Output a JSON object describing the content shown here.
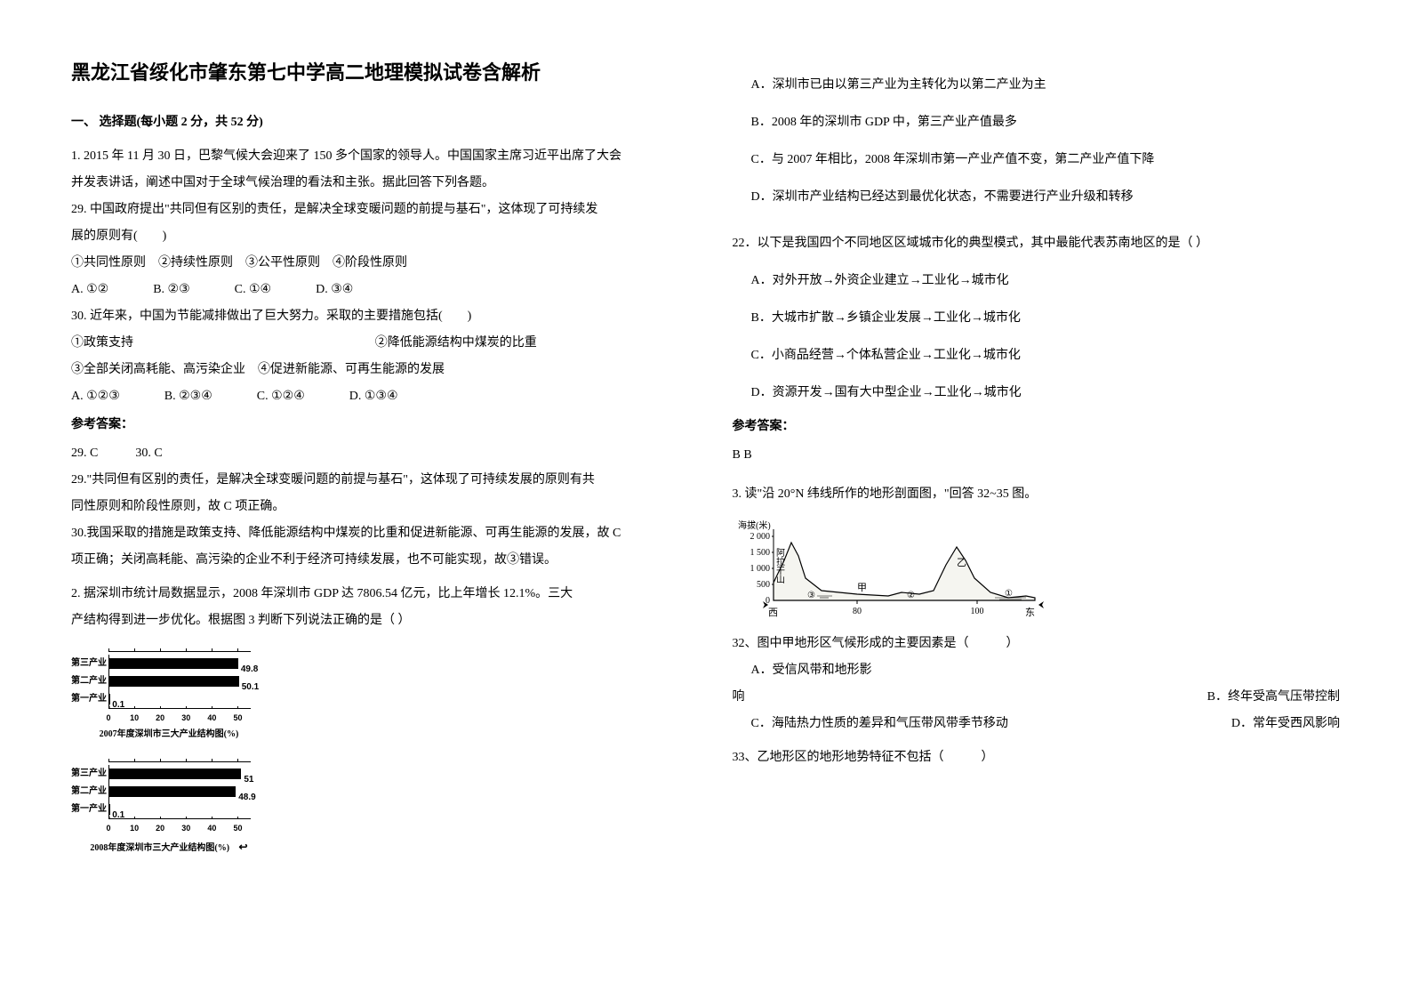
{
  "title": "黑龙江省绥化市肇东第七中学高二地理模拟试卷含解析",
  "section1_header": "一、 选择题(每小题 2 分，共 52 分)",
  "q1": {
    "intro1": "1. 2015 年 11 月 30 日，巴黎气候大会迎来了 150 多个国家的领导人。中国国家主席习近平出席了大会",
    "intro2": "并发表讲话，阐述中国对于全球气候治理的看法和主张。据此回答下列各题。",
    "q29a": "29. 中国政府提出\"共同但有区别的责任，是解决全球变暖问题的前提与基石\"，这体现了可持续发",
    "q29b": "展的原则有(　　)",
    "q29_choices": "①共同性原则　②持续性原则　③公平性原则　④阶段性原则",
    "q29_opts": {
      "a": "A. ①②",
      "b": "B. ②③",
      "c": "C. ①④",
      "d": "D. ③④"
    },
    "q30a": "30. 近年来，中国为节能减排做出了巨大努力。采取的主要措施包括(　　)",
    "q30_left": "①政策支持",
    "q30_right": "②降低能源结构中煤炭的比重",
    "q30c": "③全部关闭高耗能、高污染企业　④促进新能源、可再生能源的发展",
    "q30_opts": {
      "a": "A. ①②③",
      "b": "B. ②③④",
      "c": "C. ①②④",
      "d": "D. ①③④"
    },
    "answer_label": "参考答案：",
    "ans_line": "29. C　　　30. C",
    "expl1": "29.\"共同但有区别的责任，是解决全球变暖问题的前提与基石\"，这体现了可持续发展的原则有共",
    "expl2": "同性原则和阶段性原则，故 C 项正确。",
    "expl3": "30.我国采取的措施是政策支持、降低能源结构中煤炭的比重和促进新能源、可再生能源的发展，故 C",
    "expl4": "项正确；关闭高耗能、高污染的企业不利于经济可持续发展，也不可能实现，故③错误。"
  },
  "q2": {
    "line1": "2. 据深圳市统计局数据显示，2008 年深圳市 GDP 达 7806.54 亿元，比上年增长 12.1%。三大",
    "line2": "产结构得到进一步优化。根据图 3 判断下列说法正确的是（ ）",
    "optA": "A．深圳市已由以第三产业为主转化为以第二产业为主",
    "optB": "B．2008 年的深圳市 GDP 中，第三产业产值最多",
    "optC": "C．与 2007 年相比，2008 年深圳市第一产业产值不变，第二产业产值下降",
    "optD": "D．深圳市产业结构已经达到最优化状态，不需要进行产业升级和转移"
  },
  "q22": {
    "stem": "22．以下是我国四个不同地区区域城市化的典型模式，其中最能代表苏南地区的是（ ）",
    "optA": "A．对外开放→外资企业建立→工业化→城市化",
    "optB": "B．大城市扩散→乡镇企业发展→工业化→城市化",
    "optC": "C．小商品经营→个体私营企业→工业化→城市化",
    "optD": "D．资源开发→国有大中型企业→工业化→城市化",
    "answer_label": "参考答案：",
    "ans": "B  B"
  },
  "q3": {
    "stem": "3. 读\"沿 20°N 纬线所作的地形剖面图，\"回答 32~35 图。",
    "q32": "32、图中甲地形区气候形成的主要因素是（　　　）",
    "q32A": "A．受信风带和地形影",
    "q32_xiang": "响",
    "q32B": "B．终年受高气压带控制",
    "q32C": "C．海陆热力性质的差异和气压带风带季节移动",
    "q32D": "D．常年受西风影响",
    "q33": "33、乙地形区的地形地势特征不包括（　　　）"
  },
  "chart2007": {
    "caption": "2007年度深圳市三大产业结构图(%)",
    "rows": [
      {
        "label": "第三产业",
        "value": 49.8,
        "text": "49.8"
      },
      {
        "label": "第二产业",
        "value": 50.1,
        "text": "50.1"
      },
      {
        "label": "第一产业",
        "value": 0.1,
        "text": "0.1"
      }
    ],
    "ticks": [
      0,
      10,
      20,
      30,
      40,
      50
    ],
    "max": 55
  },
  "chart2008": {
    "caption": "2008年度深圳市三大产业结构图(%)",
    "rows": [
      {
        "label": "第三产业",
        "value": 51,
        "text": "51"
      },
      {
        "label": "第二产业",
        "value": 48.9,
        "text": "48.9"
      },
      {
        "label": "第一产业",
        "value": 0.1,
        "text": "0.1"
      }
    ],
    "ticks": [
      0,
      10,
      20,
      30,
      40,
      50
    ],
    "max": 55
  },
  "profile": {
    "ylabel": "海拔(米)",
    "yticks": [
      "2 000",
      "1 500",
      "1 000",
      "500",
      "0"
    ],
    "xlabels": {
      "west": "西",
      "east": "东"
    },
    "xticks": [
      "80",
      "100"
    ],
    "mountain_label": "阿拉干山",
    "marks": {
      "jia": "甲",
      "yi": "乙"
    },
    "circles": [
      "③",
      "②",
      "①"
    ]
  }
}
